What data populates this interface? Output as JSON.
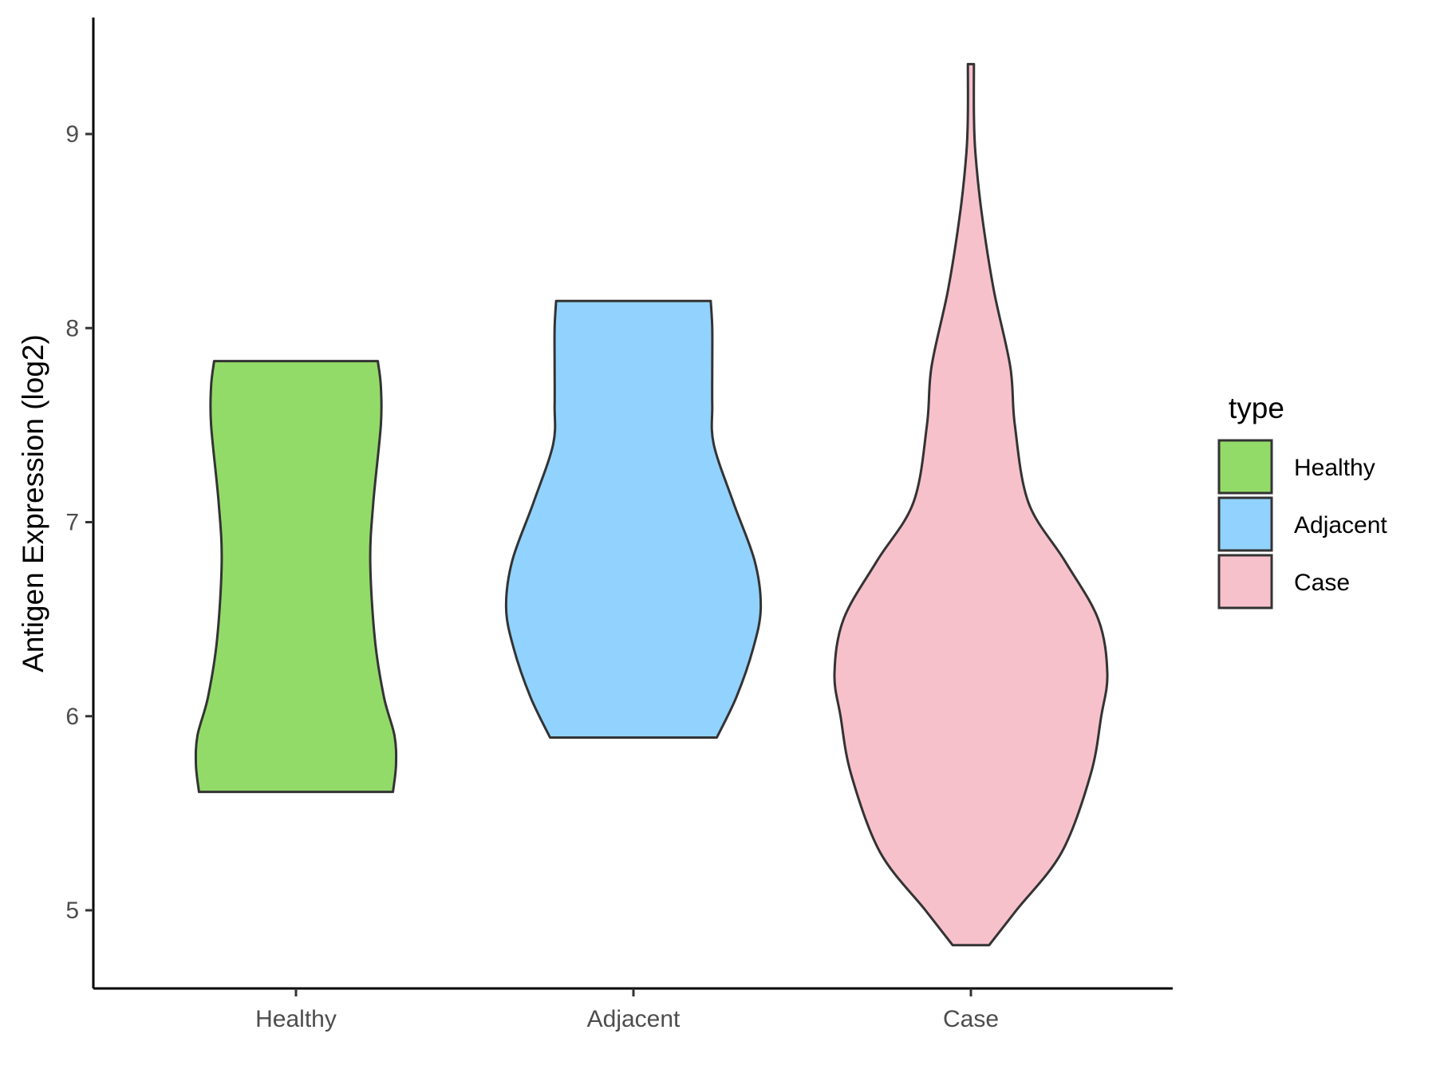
{
  "chart_data": {
    "type": "violin",
    "title": "",
    "xlabel": "",
    "ylabel": "Antigen Expression (log2)",
    "ylim": [
      4.6,
      9.6
    ],
    "yticks": [
      5,
      6,
      7,
      8,
      9
    ],
    "categories": [
      "Healthy",
      "Adjacent",
      "Case"
    ],
    "legend": {
      "title": "type",
      "position": "right",
      "entries": [
        "Healthy",
        "Adjacent",
        "Case"
      ]
    },
    "grid": false,
    "series": [
      {
        "name": "Healthy",
        "color": "#93db69",
        "min": 5.61,
        "max": 7.83,
        "density_profile": [
          [
            5.61,
            0.64
          ],
          [
            5.75,
            0.66
          ],
          [
            5.9,
            0.65
          ],
          [
            6.1,
            0.58
          ],
          [
            6.4,
            0.52
          ],
          [
            6.8,
            0.49
          ],
          [
            7.1,
            0.51
          ],
          [
            7.5,
            0.56
          ],
          [
            7.7,
            0.56
          ],
          [
            7.83,
            0.54
          ]
        ]
      },
      {
        "name": "Adjacent",
        "color": "#92d2ff",
        "min": 5.89,
        "max": 8.14,
        "density_profile": [
          [
            5.89,
            0.55
          ],
          [
            6.1,
            0.68
          ],
          [
            6.35,
            0.79
          ],
          [
            6.56,
            0.84
          ],
          [
            6.8,
            0.8
          ],
          [
            7.1,
            0.66
          ],
          [
            7.4,
            0.53
          ],
          [
            7.6,
            0.52
          ],
          [
            7.8,
            0.52
          ],
          [
            8.0,
            0.52
          ],
          [
            8.14,
            0.51
          ]
        ]
      },
      {
        "name": "Case",
        "color": "#f7c1cc",
        "min": 4.82,
        "max": 9.36,
        "density_profile": [
          [
            4.82,
            0.12
          ],
          [
            5.0,
            0.3
          ],
          [
            5.3,
            0.6
          ],
          [
            5.7,
            0.79
          ],
          [
            6.0,
            0.86
          ],
          [
            6.22,
            0.9
          ],
          [
            6.5,
            0.84
          ],
          [
            6.8,
            0.62
          ],
          [
            7.1,
            0.38
          ],
          [
            7.5,
            0.29
          ],
          [
            7.8,
            0.26
          ],
          [
            8.2,
            0.15
          ],
          [
            8.6,
            0.07
          ],
          [
            8.9,
            0.03
          ],
          [
            9.1,
            0.02
          ],
          [
            9.36,
            0.02
          ]
        ]
      }
    ]
  }
}
